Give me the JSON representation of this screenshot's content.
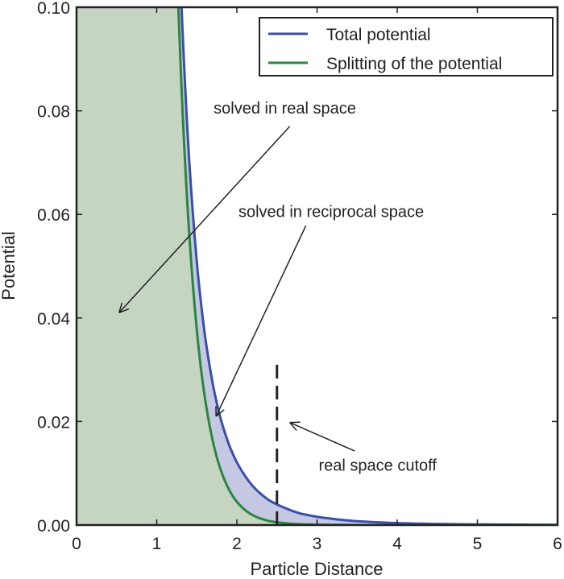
{
  "chart_data": {
    "type": "area",
    "title": "",
    "xlabel": "Particle Distance",
    "ylabel": "Potential",
    "xlim": [
      0,
      6
    ],
    "ylim": [
      0,
      0.1
    ],
    "xticks": [
      "0",
      "1",
      "2",
      "3",
      "4",
      "5",
      "6"
    ],
    "yticks": [
      "0.00",
      "0.02",
      "0.04",
      "0.06",
      "0.08",
      "0.10"
    ],
    "grid": false,
    "legend_position": "top-right",
    "x": [
      1.2,
      1.3,
      1.4,
      1.5,
      1.6,
      1.7,
      1.8,
      1.9,
      2.0,
      2.2,
      2.4,
      2.6,
      2.8,
      3.0,
      3.5,
      4.0,
      4.5,
      5.0,
      5.5,
      6.0
    ],
    "series": [
      {
        "name": "Total potential",
        "color": "#3a4fa8",
        "fill": "#c4c8e3",
        "values": [
          0.155,
          0.1039,
          0.0717,
          0.0508,
          0.0368,
          0.0272,
          0.0204,
          0.0156,
          0.0121,
          0.0075,
          0.0048,
          0.0033,
          0.0022,
          0.0016,
          0.00074,
          0.00038,
          0.00021,
          0.00012,
          8e-05,
          5e-05
        ]
      },
      {
        "name": "Splitting of the potential",
        "color": "#2a8540",
        "fill": "#c6d4c2",
        "values": [
          0.1346,
          0.0881,
          0.0576,
          0.0377,
          0.0247,
          0.0162,
          0.0106,
          0.0069,
          0.0045,
          0.0019,
          0.0008,
          0.00036,
          0.00015,
          7e-05,
          0,
          0,
          0,
          0,
          0,
          0
        ]
      }
    ],
    "cutoff": {
      "x": 2.5,
      "y_top": 0.031
    },
    "annotations": [
      {
        "text": "solved in real space",
        "text_at": [
          1.71,
          0.0795
        ],
        "arrow_from": [
          2.66,
          0.077
        ],
        "arrow_to": [
          0.53,
          0.041
        ]
      },
      {
        "text": "solved in reciprocal space",
        "text_at": [
          2.02,
          0.0595
        ],
        "arrow_from": [
          2.86,
          0.0578
        ],
        "arrow_to": [
          1.74,
          0.021
        ]
      },
      {
        "text": "real space cutoff",
        "text_at": [
          3.02,
          0.0105
        ],
        "arrow_from": [
          3.47,
          0.0143
        ],
        "arrow_to": [
          2.66,
          0.0198
        ]
      }
    ]
  }
}
